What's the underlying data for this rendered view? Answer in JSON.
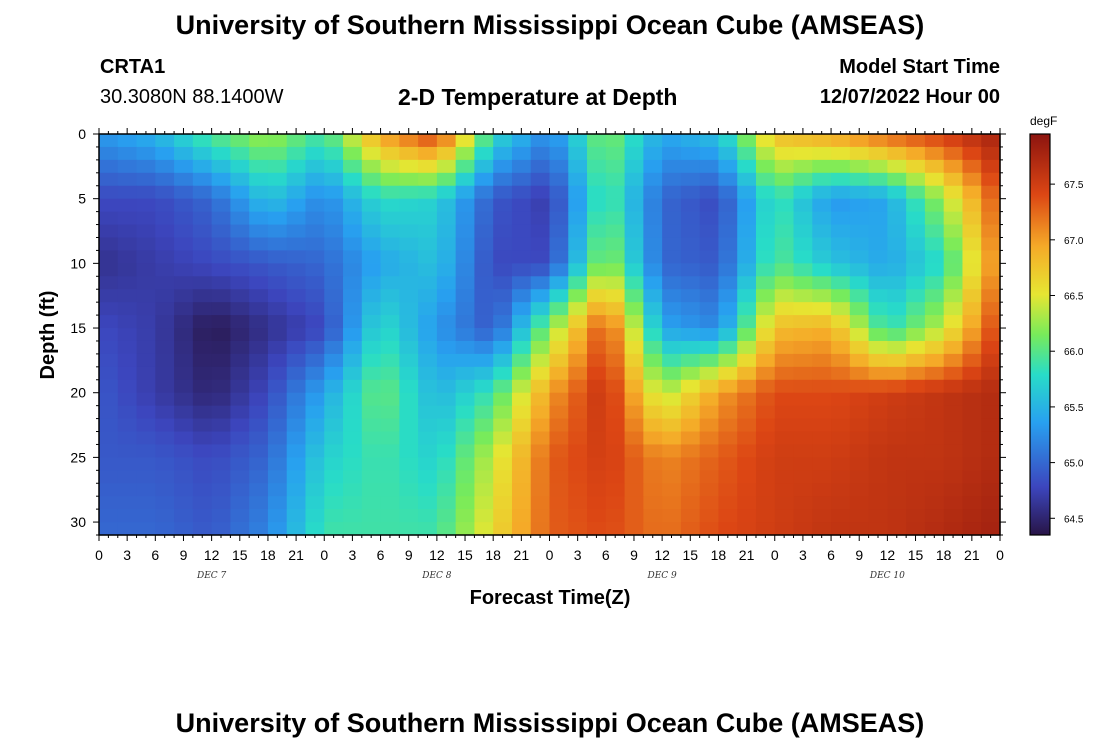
{
  "header": {
    "main_title": "University of Southern Mississippi Ocean Cube (AMSEAS)",
    "station_id": "CRTA1",
    "station_coords": "30.3080N  88.1400W",
    "chart_title": "2-D Temperature at Depth",
    "model_start_label": "Model Start Time",
    "model_start_value": "12/07/2022 Hour 00"
  },
  "footer": {
    "title": "University of Southern Mississippi Ocean Cube (AMSEAS)"
  },
  "chart_data": {
    "type": "heatmap",
    "title": "2-D Temperature at Depth",
    "xlabel": "Forecast Time(Z)",
    "ylabel": "Depth (ft)",
    "x_hours_range": [
      0,
      96
    ],
    "xtick_hours": [
      0,
      3,
      6,
      9,
      12,
      15,
      18,
      21,
      24,
      27,
      30,
      33,
      36,
      39,
      42,
      45,
      48,
      51,
      54,
      57,
      60,
      63,
      66,
      69,
      72,
      75,
      78,
      81,
      84,
      87,
      90,
      93,
      96
    ],
    "xtick_labels": [
      "0",
      "3",
      "6",
      "9",
      "12",
      "15",
      "18",
      "21",
      "0",
      "3",
      "6",
      "9",
      "12",
      "15",
      "18",
      "21",
      "0",
      "3",
      "6",
      "9",
      "12",
      "15",
      "18",
      "21",
      "0",
      "3",
      "6",
      "9",
      "12",
      "15",
      "18",
      "21",
      "0"
    ],
    "date_labels": [
      {
        "hour": 12,
        "label": "DEC 7"
      },
      {
        "hour": 36,
        "label": "DEC 8"
      },
      {
        "hour": 60,
        "label": "DEC 9"
      },
      {
        "hour": 84,
        "label": "DEC 10"
      }
    ],
    "ylim": [
      0,
      31
    ],
    "ytick_values": [
      0,
      5,
      10,
      15,
      20,
      25,
      30
    ],
    "ytick_labels": [
      "0",
      "5",
      "10",
      "15",
      "20",
      "25",
      "30"
    ],
    "colorbar": {
      "unit": "degF",
      "range": [
        64.35,
        67.95
      ],
      "tick_values": [
        64.5,
        65.0,
        65.5,
        66.0,
        66.5,
        67.0,
        67.5
      ],
      "tick_labels": [
        "64.5",
        "65.0",
        "65.5",
        "66.0",
        "66.5",
        "67.0",
        "67.5"
      ]
    },
    "grid_hours": [
      0,
      6,
      12,
      18,
      24,
      30,
      36,
      42,
      48,
      54,
      60,
      66,
      72,
      78,
      84,
      90,
      96
    ],
    "grid_depths": [
      0,
      5,
      10,
      15,
      20,
      25,
      31
    ],
    "temperature_degF": [
      [
        65.3,
        65.5,
        66.0,
        66.3,
        65.9,
        67.0,
        67.5,
        65.8,
        65.2,
        66.2,
        65.4,
        65.6,
        66.8,
        67.0,
        67.3,
        67.5,
        67.8
      ],
      [
        64.8,
        64.8,
        65.0,
        65.6,
        65.2,
        65.8,
        65.7,
        64.9,
        64.7,
        66.0,
        65.0,
        64.8,
        65.9,
        65.3,
        65.4,
        66.3,
        67.4
      ],
      [
        64.6,
        64.7,
        64.8,
        64.9,
        65.0,
        65.4,
        65.6,
        64.8,
        64.8,
        66.3,
        65.0,
        64.9,
        66.0,
        65.6,
        65.4,
        65.8,
        67.2
      ],
      [
        64.8,
        64.7,
        64.4,
        64.6,
        64.8,
        65.8,
        65.3,
        64.9,
        66.2,
        67.4,
        65.4,
        65.2,
        66.8,
        66.9,
        65.8,
        66.4,
        67.5
      ],
      [
        64.9,
        64.7,
        64.5,
        64.8,
        65.4,
        66.1,
        65.5,
        65.9,
        67.0,
        67.6,
        66.3,
        67.0,
        67.4,
        67.4,
        67.5,
        67.6,
        67.7
      ],
      [
        64.9,
        64.9,
        64.8,
        65.0,
        65.7,
        65.9,
        65.7,
        66.4,
        67.3,
        67.5,
        67.1,
        67.3,
        67.5,
        67.5,
        67.6,
        67.6,
        67.7
      ],
      [
        65.0,
        65.0,
        64.9,
        65.2,
        65.9,
        65.9,
        65.9,
        66.6,
        67.3,
        67.4,
        67.2,
        67.4,
        67.5,
        67.6,
        67.6,
        67.7,
        67.8
      ]
    ]
  }
}
